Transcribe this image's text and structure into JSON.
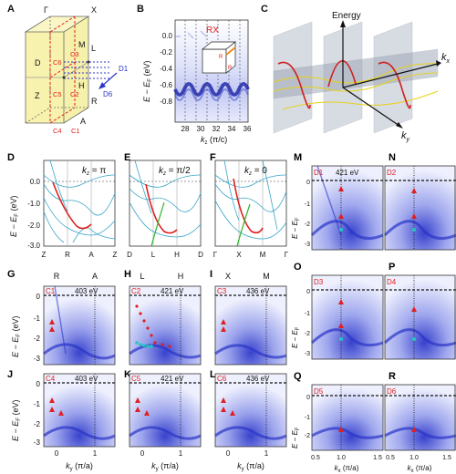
{
  "panels": {
    "A": {
      "label": "A",
      "points": {
        "gamma": "Γ",
        "x": "X",
        "m": "M",
        "l": "L",
        "d": "D",
        "z": "Z",
        "h": "H",
        "r": "R",
        "a": "A",
        "d1": "D1",
        "d6": "D6"
      },
      "cuts": {
        "c1": "C1",
        "c2": "C2",
        "c3": "C3",
        "c4": "C4",
        "c5": "C5",
        "c6": "C6"
      }
    },
    "B": {
      "label": "B",
      "inset_title": "RX",
      "ylabel": "E − E",
      "ylabel_sub": "F",
      "ylabel_unit": "(eV)",
      "xlabel": "k",
      "xlabel_sub": "z",
      "xlabel_unit": "(π/c)",
      "yticks": [
        "0.0",
        "-0.2",
        "-0.4",
        "-0.6",
        "-0.8"
      ],
      "xticks": [
        "28",
        "30",
        "32",
        "34",
        "36"
      ],
      "inset_r1": "R",
      "inset_r2": "R"
    },
    "C": {
      "label": "C",
      "energy": "Energy",
      "kx": "k",
      "kx_sub": "x",
      "ky": "k",
      "ky_sub": "y"
    },
    "D": {
      "label": "D",
      "kz": "k",
      "kz_sub": "z",
      "kz_value": " = π",
      "xticks": [
        "Z",
        "R",
        "A",
        "Z"
      ]
    },
    "E": {
      "label": "E",
      "kz": "k",
      "kz_sub": "z",
      "kz_value": " = π/2",
      "xticks": [
        "D",
        "L",
        "H",
        "D"
      ]
    },
    "F": {
      "label": "F",
      "kz": "k",
      "kz_sub": "z",
      "kz_value": " = 0",
      "xticks": [
        "Γ",
        "X",
        "M",
        "Γ"
      ]
    },
    "DEF_axis": {
      "ylabel": "E − E",
      "ylabel_sub": "F",
      "ylabel_unit": "(eV)",
      "yticks": [
        "0.0",
        "-1.0",
        "-2.0",
        "-3.0"
      ]
    },
    "G": {
      "label": "G",
      "tag": "C1",
      "energy": "403 eV",
      "top1": "R",
      "top2": "A"
    },
    "H": {
      "label": "H",
      "tag": "C2",
      "energy": "421 eV",
      "top1": "L",
      "top2": "H"
    },
    "I": {
      "label": "I",
      "tag": "C3",
      "energy": "436 eV",
      "top1": "X",
      "top2": "M"
    },
    "J": {
      "label": "J",
      "tag": "C4",
      "energy": "403 eV"
    },
    "K": {
      "label": "K",
      "tag": "C5",
      "energy": "421 eV"
    },
    "L": {
      "label": "L",
      "tag": "C6",
      "energy": "436 eV"
    },
    "GL_axis": {
      "ylabel": "E − E",
      "ylabel_sub": "F",
      "ylabel_unit": "(eV)",
      "yticks": [
        "0",
        "-1",
        "-2",
        "-3"
      ],
      "xlabel": "k",
      "xlabel_sub": "y",
      "xlabel_unit": "(π/a)",
      "xticks": [
        "0",
        "1"
      ]
    },
    "M": {
      "label": "M",
      "tag": "D1",
      "energy": "421 eV"
    },
    "N": {
      "label": "N",
      "tag": "D2"
    },
    "O": {
      "label": "O",
      "tag": "D3"
    },
    "P": {
      "label": "P",
      "tag": "D4"
    },
    "Q": {
      "label": "Q",
      "tag": "D5"
    },
    "R": {
      "label": "R",
      "tag": "D6"
    },
    "MR_axis": {
      "ylabel": "E − E",
      "ylabel_sub": "F",
      "ylabel_unit": "(eV)",
      "yticks": [
        "0",
        "-1",
        "-2",
        "-3"
      ],
      "xlabel": "k",
      "xlabel_sub": "x",
      "xlabel_unit": "(π/a)",
      "xticks": [
        "0.5",
        "1.0",
        "1.5"
      ]
    }
  },
  "colors": {
    "arpes_bg": "#e4e8fb",
    "arpes_band": "#2a35c8",
    "marker_red": "#e02020",
    "marker_cyan": "#22c8c0",
    "dft_line": "#3aa6c9",
    "dft_red": "#e02020",
    "dft_green": "#2ab52a",
    "bz_face": "#f6f1a0"
  }
}
